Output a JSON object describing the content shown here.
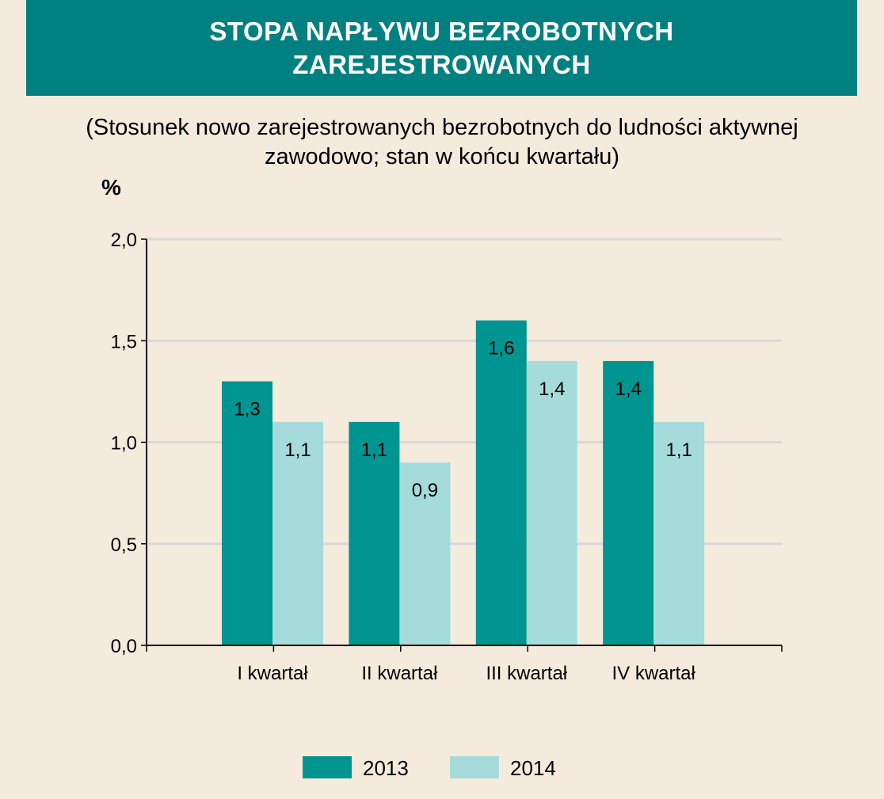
{
  "chart_data": {
    "type": "bar",
    "title": "STOPA NAPŁYWU BEZROBOTNYCH ZAREJESTROWANYCH",
    "subtitle": "(Stosunek nowo zarejestrowanych bezrobotnych do ludności aktywnej zawodowo; stan w końcu kwartału)",
    "ylabel": "%",
    "xlabel": "",
    "categories": [
      "I kwartał",
      "II kwartał",
      "III kwartał",
      "IV kwartał"
    ],
    "series": [
      {
        "name": "2013",
        "values": [
          1.3,
          1.1,
          1.6,
          1.4
        ],
        "labels": [
          "1,3",
          "1,1",
          "1,6",
          "1,4"
        ],
        "color": "#009590"
      },
      {
        "name": "2014",
        "values": [
          1.1,
          0.9,
          1.4,
          1.1
        ],
        "labels": [
          "1,1",
          "0,9",
          "1,4",
          "1,1"
        ],
        "color": "#a6dbdb"
      }
    ],
    "ylim": [
      0,
      2
    ],
    "yticks": [
      0,
      0.5,
      1,
      1.5,
      2
    ],
    "ytick_labels": [
      "0,0",
      "0,5",
      "1,0",
      "1,5",
      "2,0"
    ],
    "grid": true,
    "legend_position": "bottom"
  },
  "colors": {
    "banner": "#008080",
    "background": "#f5ebdc",
    "grid": "#d9d9d9"
  }
}
